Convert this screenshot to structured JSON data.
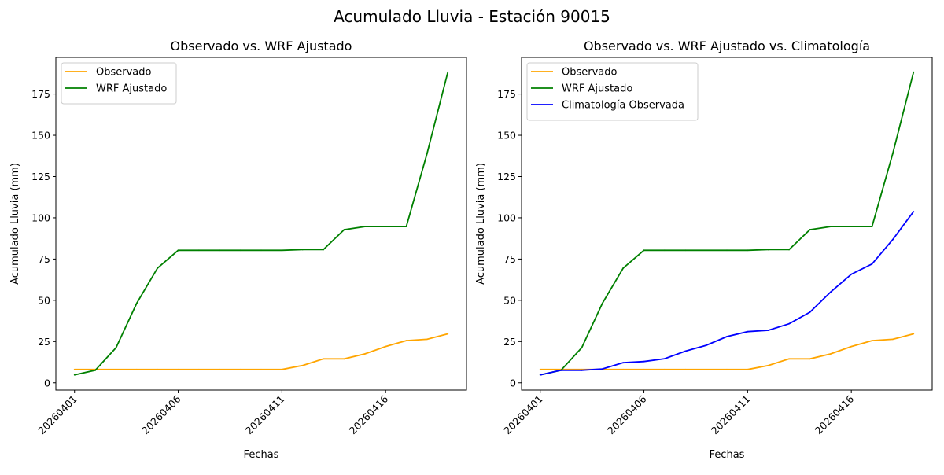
{
  "chart_data": [
    {
      "type": "line",
      "suptitle": "Acumulado Lluvia - Estación 90015",
      "title": "Observado vs. WRF Ajustado",
      "xlabel": "Fechas",
      "ylabel": "Acumulado Lluvia (mm)",
      "x": [
        "20260401",
        "20260402",
        "20260403",
        "20260404",
        "20260405",
        "20260406",
        "20260407",
        "20260408",
        "20260409",
        "20260410",
        "20260411",
        "20260412",
        "20260413",
        "20260414",
        "20260415",
        "20260416",
        "20260417",
        "20260418",
        "20260419"
      ],
      "xticks": [
        "20260401",
        "20260406",
        "20260411",
        "20260416"
      ],
      "yticks": [
        0,
        25,
        50,
        75,
        100,
        125,
        150,
        175
      ],
      "ylim": [
        -4.4,
        197.2
      ],
      "legend": "top-left",
      "series": [
        {
          "name": "Observado",
          "color": "#ffa500",
          "values": [
            8.1,
            8.1,
            8.1,
            8.1,
            8.1,
            8.1,
            8.1,
            8.1,
            8.1,
            8.1,
            8.1,
            10.5,
            14.5,
            14.5,
            17.5,
            22,
            25.6,
            26.4,
            29.7
          ]
        },
        {
          "name": "WRF Ajustado",
          "color": "#008000",
          "values": [
            4.8,
            7.6,
            21.3,
            48.2,
            69.5,
            80.3,
            80.3,
            80.3,
            80.3,
            80.3,
            80.3,
            80.7,
            80.7,
            92.8,
            94.7,
            94.7,
            94.7,
            139,
            188.3
          ]
        }
      ]
    },
    {
      "type": "line",
      "title": "Observado vs. WRF Ajustado vs. Climatología",
      "xlabel": "Fechas",
      "ylabel": "Acumulado Lluvia (mm)",
      "x": [
        "20260401",
        "20260402",
        "20260403",
        "20260404",
        "20260405",
        "20260406",
        "20260407",
        "20260408",
        "20260409",
        "20260410",
        "20260411",
        "20260412",
        "20260413",
        "20260414",
        "20260415",
        "20260416",
        "20260417",
        "20260418",
        "20260419"
      ],
      "xticks": [
        "20260401",
        "20260406",
        "20260411",
        "20260416"
      ],
      "yticks": [
        0,
        25,
        50,
        75,
        100,
        125,
        150,
        175
      ],
      "ylim": [
        -4.4,
        197.2
      ],
      "legend": "top-left",
      "series": [
        {
          "name": "Observado",
          "color": "#ffa500",
          "values": [
            8.1,
            8.1,
            8.1,
            8.1,
            8.1,
            8.1,
            8.1,
            8.1,
            8.1,
            8.1,
            8.1,
            10.5,
            14.5,
            14.5,
            17.5,
            22,
            25.6,
            26.4,
            29.7
          ]
        },
        {
          "name": "WRF Ajustado",
          "color": "#008000",
          "values": [
            4.8,
            7.6,
            21.3,
            48.2,
            69.5,
            80.3,
            80.3,
            80.3,
            80.3,
            80.3,
            80.3,
            80.7,
            80.7,
            92.8,
            94.7,
            94.7,
            94.7,
            139,
            188.3
          ]
        },
        {
          "name": "Climatología Observada",
          "color": "#0000ff",
          "values": [
            4.8,
            7.6,
            7.6,
            8.4,
            12.2,
            12.9,
            14.6,
            19.2,
            22.7,
            28,
            31,
            31.8,
            35.8,
            42.8,
            55,
            65.8,
            72,
            86.8,
            103.8
          ]
        }
      ]
    }
  ]
}
